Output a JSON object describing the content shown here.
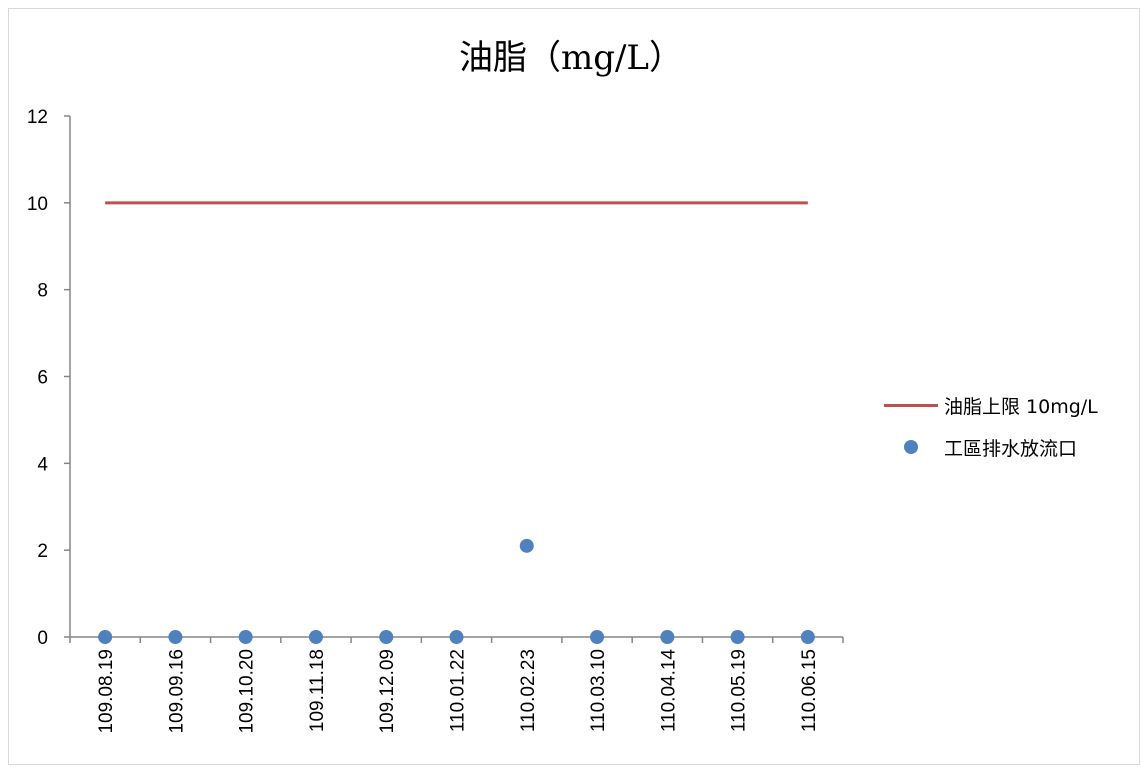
{
  "chart_data": {
    "type": "scatter",
    "title": "油脂（mg/L）",
    "categories": [
      "109.08.19",
      "109.09.16",
      "109.10.20",
      "109.11.18",
      "109.12.09",
      "110.01.22",
      "110.02.23",
      "110.03.10",
      "110.04.14",
      "110.05.19",
      "110.06.15"
    ],
    "series": [
      {
        "name": "油脂上限 10mg/L",
        "kind": "line",
        "color": "#c0504d",
        "values": [
          10,
          10,
          10,
          10,
          10,
          10,
          10,
          10,
          10,
          10,
          10
        ]
      },
      {
        "name": "工區排水放流口",
        "kind": "scatter",
        "color": "#4f81bd",
        "values": [
          0,
          0,
          0,
          0,
          0,
          0,
          2.1,
          0,
          0,
          0,
          0
        ]
      }
    ],
    "ylim": [
      0,
      12
    ],
    "yticks": [
      0,
      2,
      4,
      6,
      8,
      10,
      12
    ],
    "grid": false,
    "legend_position": "right"
  }
}
